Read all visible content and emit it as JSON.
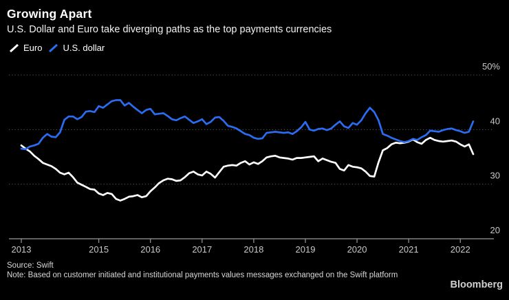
{
  "header": {
    "title": "Growing Apart",
    "subtitle": "U.S. Dollar and Euro take diverging paths as the top payments currencies"
  },
  "legend": [
    {
      "label": "Euro",
      "color": "#ffffff"
    },
    {
      "label": "U.S. dollar",
      "color": "#2a6cf2"
    }
  ],
  "footer": {
    "source": "Source: Swift",
    "note": "Note: Based on customer initiated and institutional payments values messages exchanged on the Swift platform",
    "brand": "Bloomberg"
  },
  "chart_data": {
    "type": "line",
    "title": "Growing Apart",
    "subtitle": "U.S. Dollar and Euro take diverging paths as the top payments currencies",
    "x_unit": "month",
    "x_start": "2013-07",
    "x_end": "2022-04",
    "x_tick_labels": [
      "2013",
      "2015",
      "2016",
      "2017",
      "2018",
      "2019",
      "2020",
      "2021",
      "2022"
    ],
    "y_ticks": [
      20,
      30,
      40,
      50
    ],
    "y_tick_labels": [
      "20",
      "30",
      "40",
      "50%"
    ],
    "ylim": [
      20,
      50
    ],
    "grid": "horizontal-dotted",
    "legend_position": "top-left",
    "colors": {
      "axis_text": "#c9c9c9",
      "axis_line": "#9b9b9b",
      "gridline": "#585858",
      "background": "#000000"
    },
    "series": [
      {
        "name": "Euro",
        "color": "#ffffff",
        "values": [
          37.1,
          36.5,
          36.0,
          35.2,
          34.6,
          33.9,
          33.6,
          33.3,
          32.8,
          32.1,
          31.8,
          32.1,
          31.3,
          30.3,
          29.9,
          29.5,
          29.1,
          29.0,
          28.3,
          28.0,
          28.4,
          28.2,
          27.3,
          27.0,
          27.3,
          27.7,
          27.8,
          28.0,
          27.6,
          27.8,
          28.7,
          29.4,
          30.2,
          30.7,
          31.0,
          30.9,
          30.6,
          30.7,
          31.3,
          32.0,
          32.3,
          31.8,
          31.6,
          32.3,
          31.9,
          31.2,
          32.2,
          33.2,
          33.4,
          33.5,
          33.4,
          33.9,
          34.2,
          33.6,
          34.0,
          33.7,
          34.2,
          34.9,
          35.1,
          35.2,
          34.9,
          34.8,
          34.7,
          34.5,
          34.8,
          34.8,
          34.9,
          35.0,
          35.1,
          34.2,
          34.7,
          34.4,
          34.1,
          33.9,
          32.8,
          32.5,
          33.5,
          33.2,
          33.1,
          32.9,
          32.3,
          31.5,
          31.4,
          34.0,
          36.2,
          36.6,
          37.3,
          37.6,
          37.5,
          37.6,
          37.8,
          38.2,
          37.7,
          37.4,
          38.1,
          38.5,
          38.1,
          37.9,
          37.8,
          37.9,
          38.0,
          37.8,
          37.3,
          36.9,
          37.3,
          35.5
        ]
      },
      {
        "name": "U.S. dollar",
        "color": "#2a6cf2",
        "values": [
          36.5,
          36.4,
          36.9,
          37.1,
          37.4,
          38.5,
          39.2,
          38.7,
          38.6,
          39.5,
          41.8,
          42.4,
          42.4,
          41.9,
          42.3,
          43.3,
          43.4,
          43.2,
          44.3,
          44.0,
          44.6,
          45.2,
          45.4,
          45.4,
          44.4,
          44.9,
          44.2,
          43.6,
          43.0,
          43.6,
          43.8,
          42.8,
          42.9,
          43.0,
          42.5,
          41.9,
          41.7,
          42.1,
          42.4,
          41.8,
          41.2,
          41.5,
          41.9,
          41.0,
          41.4,
          42.2,
          42.3,
          41.6,
          40.7,
          40.5,
          40.2,
          39.7,
          39.2,
          39.0,
          38.5,
          38.3,
          38.4,
          39.4,
          39.5,
          39.6,
          39.5,
          39.4,
          39.5,
          39.2,
          39.7,
          40.4,
          41.4,
          40.0,
          39.8,
          40.1,
          40.2,
          39.9,
          40.2,
          40.9,
          41.5,
          40.6,
          40.3,
          41.2,
          40.9,
          41.7,
          43.0,
          44.0,
          43.2,
          41.7,
          39.2,
          38.9,
          38.5,
          38.2,
          37.9,
          37.7,
          37.9,
          38.3,
          38.1,
          38.6,
          39.0,
          39.8,
          39.7,
          39.6,
          39.9,
          40.1,
          40.2,
          39.9,
          39.7,
          39.4,
          39.6,
          41.5
        ]
      }
    ]
  }
}
